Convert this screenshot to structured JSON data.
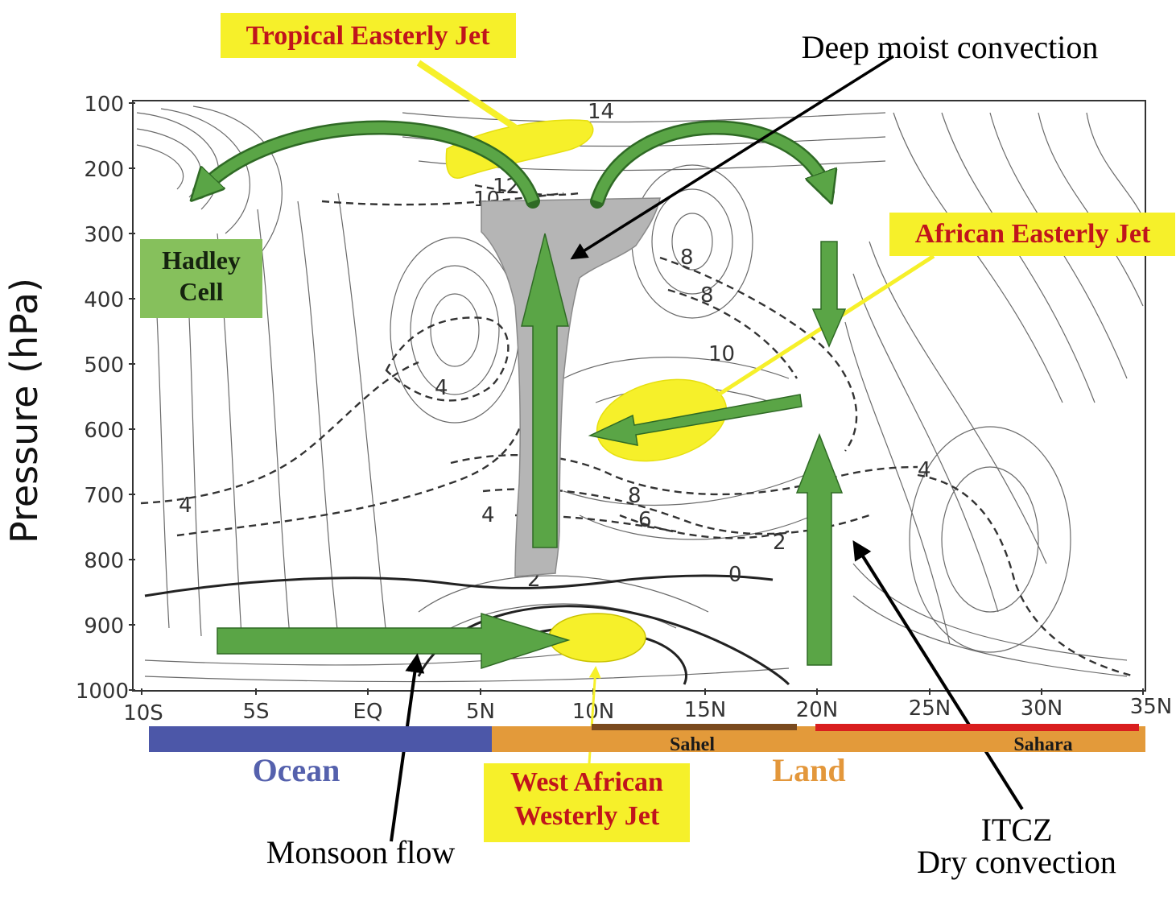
{
  "axis": {
    "y_title": "Pressure (hPa)",
    "y_ticks": [
      "100",
      "200",
      "300",
      "400",
      "500",
      "600",
      "700",
      "800",
      "900",
      "1000"
    ],
    "x_ticks": [
      "10S",
      "5S",
      "EQ",
      "5N",
      "10N",
      "15N",
      "20N",
      "25N",
      "30N",
      "35N"
    ]
  },
  "labels": {
    "tropical_easterly_jet": "Tropical Easterly Jet",
    "deep_moist_convection": "Deep moist convection",
    "african_easterly_jet": "African Easterly Jet",
    "hadley_line1": "Hadley",
    "hadley_line2": "Cell",
    "west_african_line1": "West African",
    "west_african_line2": "Westerly Jet",
    "monsoon_flow": "Monsoon flow",
    "itcz_line1": "ITCZ",
    "itcz_line2": "Dry convection"
  },
  "surface": {
    "ocean": "Ocean",
    "land": "Land",
    "sahel": "Sahel",
    "sahara": "Sahara"
  },
  "contour_labels": [
    "14",
    "12",
    "10",
    "8",
    "8",
    "10",
    "4",
    "4",
    "8",
    "6",
    "4",
    "2",
    "0",
    "2",
    "4",
    "4"
  ],
  "colors": {
    "ocean_bar": "#4c57a8",
    "land_bar": "#e39a3a",
    "sahel_bar": "#7a4a1e",
    "sahara_bar": "#d91e1e",
    "arrow_green": "#5aa546",
    "jet_yellow": "#f6f02a",
    "convection_gray": "#b5b5b5",
    "hadley_box": "#86c05c"
  }
}
